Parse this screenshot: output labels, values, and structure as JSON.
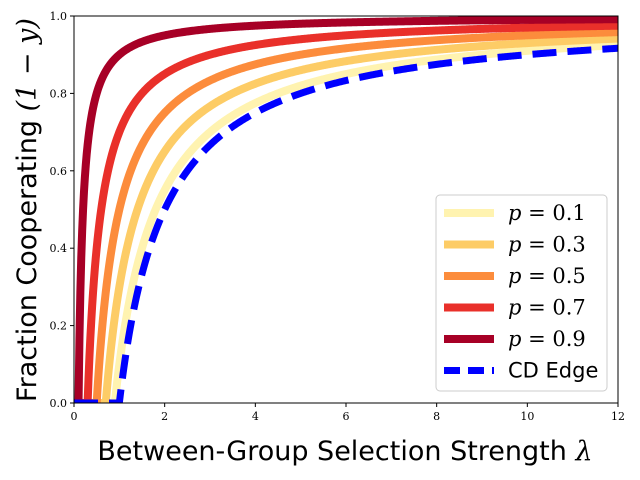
{
  "chart_data": {
    "type": "line",
    "title": "",
    "xlabel": "Between-Group Selection Strength",
    "xlabel_math": "λ",
    "ylabel": "Fraction Cooperating",
    "ylabel_math": "(1 − y)",
    "xlim": [
      0,
      12
    ],
    "ylim": [
      0,
      1.0
    ],
    "xticks": [
      0,
      2,
      4,
      6,
      8,
      10,
      12
    ],
    "yticks": [
      0.0,
      0.2,
      0.4,
      0.6,
      0.8,
      1.0
    ],
    "ytick_labels": [
      "0.0",
      "0.2",
      "0.4",
      "0.6",
      "0.8",
      "1.0"
    ],
    "grid": false,
    "legend_position": "lower-right",
    "series": [
      {
        "name": "p = 0.1",
        "label_var": "p",
        "label_val": "0.1",
        "p": 0.1,
        "color": "#fff3b0",
        "dashed": false
      },
      {
        "name": "p = 0.3",
        "label_var": "p",
        "label_val": "0.3",
        "p": 0.3,
        "color": "#fdcc66",
        "dashed": false
      },
      {
        "name": "p = 0.5",
        "label_var": "p",
        "label_val": "0.5",
        "p": 0.5,
        "color": "#fc8c3c",
        "dashed": false
      },
      {
        "name": "p = 0.7",
        "label_var": "p",
        "label_val": "0.7",
        "p": 0.7,
        "color": "#e9302a",
        "dashed": false
      },
      {
        "name": "p = 0.9",
        "label_var": "p",
        "label_val": "0.9",
        "p": 0.9,
        "color": "#a70026",
        "dashed": false
      },
      {
        "name": "CD Edge",
        "label_plain": "CD Edge",
        "p": 0.0,
        "color": "#0000ff",
        "dashed": true
      }
    ],
    "x": [
      0,
      0.25,
      0.5,
      0.75,
      1,
      1.25,
      1.5,
      1.75,
      2,
      2.5,
      3,
      3.5,
      4,
      4.5,
      5,
      5.5,
      6,
      6.5,
      7,
      7.5,
      8,
      8.5,
      9,
      9.5,
      10,
      10.5,
      11,
      11.5,
      12
    ],
    "model": "y = max(0, 1 - (1 - p) / λ) for λ > 1 - p, else 0"
  }
}
